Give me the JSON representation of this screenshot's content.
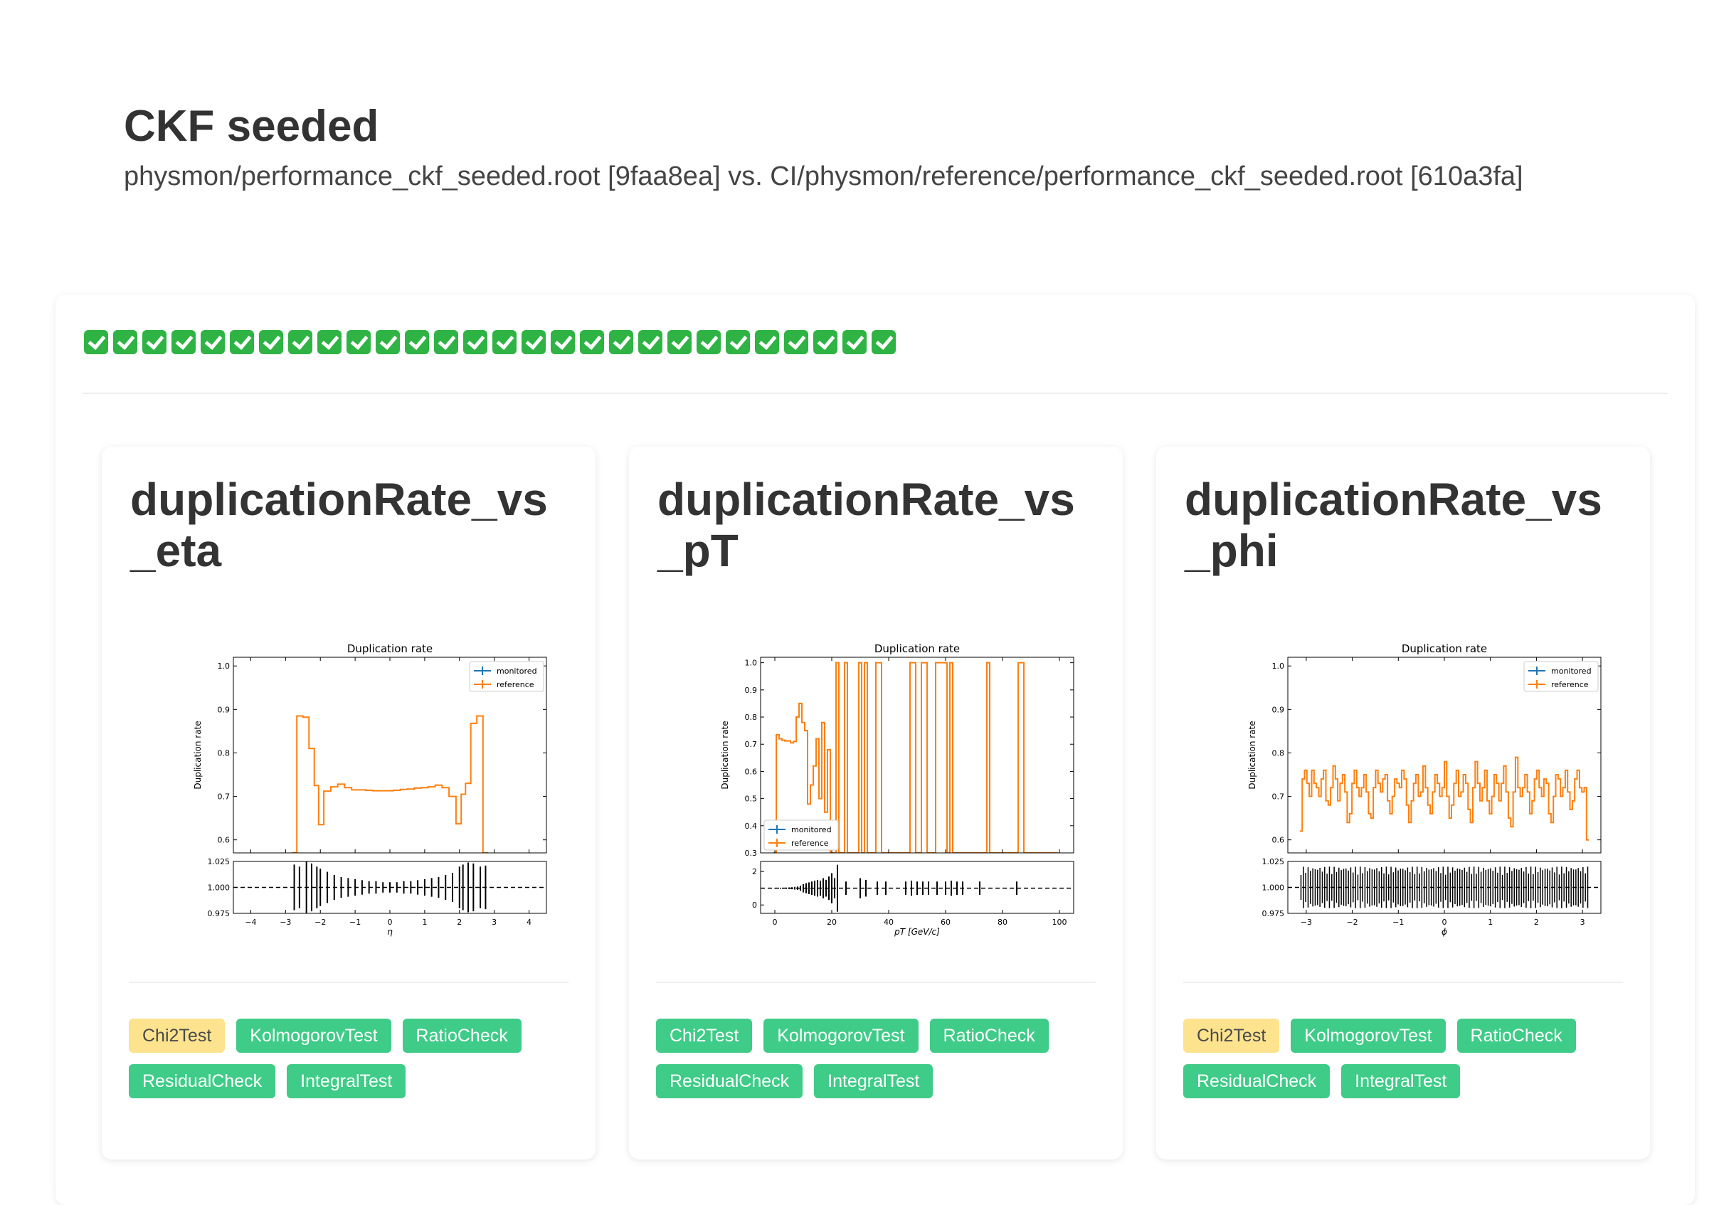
{
  "page": {
    "title": "CKF seeded",
    "subtitle": "physmon/performance_ckf_seeded.root [9faa8ea] vs. CI/physmon/reference/performance_ckf_seeded.root [610a3fa]"
  },
  "status_checks": {
    "count": 28,
    "icon": "check-mark-button-icon",
    "color": "#2fb344"
  },
  "colors": {
    "pass": "#3fcb88",
    "warn": "#fde38e",
    "monitored": "#1f77b4",
    "reference": "#ff7f0e"
  },
  "cards": [
    {
      "title": "duplicationRate_vs_eta",
      "tags": [
        {
          "label": "Chi2Test",
          "status": "warn"
        },
        {
          "label": "KolmogorovTest",
          "status": "pass"
        },
        {
          "label": "RatioCheck",
          "status": "pass"
        },
        {
          "label": "ResidualCheck",
          "status": "pass"
        },
        {
          "label": "IntegralTest",
          "status": "pass"
        }
      ]
    },
    {
      "title": "duplicationRate_vs_pT",
      "tags": [
        {
          "label": "Chi2Test",
          "status": "pass"
        },
        {
          "label": "KolmogorovTest",
          "status": "pass"
        },
        {
          "label": "RatioCheck",
          "status": "pass"
        },
        {
          "label": "ResidualCheck",
          "status": "pass"
        },
        {
          "label": "IntegralTest",
          "status": "pass"
        }
      ]
    },
    {
      "title": "duplicationRate_vs_phi",
      "tags": [
        {
          "label": "Chi2Test",
          "status": "warn"
        },
        {
          "label": "KolmogorovTest",
          "status": "pass"
        },
        {
          "label": "RatioCheck",
          "status": "pass"
        },
        {
          "label": "ResidualCheck",
          "status": "pass"
        },
        {
          "label": "IntegralTest",
          "status": "pass"
        }
      ]
    }
  ],
  "chart_data": [
    {
      "type": "line",
      "title": "Duplication rate",
      "xlabel": "η",
      "ylabel": "Duplication rate",
      "legend": [
        "monitored",
        "reference"
      ],
      "legend_position": "top-right",
      "xlim": [
        -4.5,
        4.5
      ],
      "ylim": [
        0.57,
        1.02
      ],
      "xticks": [
        "−4",
        "−3",
        "−2",
        "−1",
        "0",
        "1",
        "2",
        "3",
        "4"
      ],
      "xtick_values": [
        -4,
        -3,
        -2,
        -1,
        0,
        1,
        2,
        3,
        4
      ],
      "yticks": [
        "0.6",
        "0.7",
        "0.8",
        "0.9",
        "1.0"
      ],
      "ytick_values": [
        0.6,
        0.7,
        0.8,
        0.9,
        1.0
      ],
      "ratio_ylim": [
        0.975,
        1.025
      ],
      "ratio_yticks": [
        "0.975",
        "1.000",
        "1.025"
      ],
      "ratio_ytick_values": [
        0.975,
        1.0,
        1.025
      ],
      "x": [
        -2.75,
        -2.6,
        -2.4,
        -2.25,
        -2.1,
        -2.0,
        -1.8,
        -1.6,
        -1.4,
        -1.2,
        -1.0,
        -0.8,
        -0.6,
        -0.4,
        -0.2,
        0.0,
        0.2,
        0.4,
        0.6,
        0.8,
        1.0,
        1.2,
        1.4,
        1.6,
        1.8,
        2.0,
        2.1,
        2.25,
        2.4,
        2.6,
        2.75
      ],
      "values": [
        0.57,
        0.885,
        0.882,
        0.81,
        0.725,
        0.635,
        0.712,
        0.722,
        0.728,
        0.72,
        0.715,
        0.715,
        0.714,
        0.713,
        0.713,
        0.713,
        0.714,
        0.716,
        0.717,
        0.719,
        0.72,
        0.722,
        0.726,
        0.72,
        0.7,
        0.637,
        0.705,
        0.73,
        0.868,
        0.885,
        0.57
      ],
      "ratio_err": [
        0.022,
        0.02,
        0.025,
        0.023,
        0.02,
        0.018,
        0.015,
        0.012,
        0.01,
        0.009,
        0.008,
        0.007,
        0.006,
        0.006,
        0.005,
        0.005,
        0.005,
        0.006,
        0.006,
        0.007,
        0.008,
        0.009,
        0.01,
        0.012,
        0.014,
        0.02,
        0.022,
        0.024,
        0.023,
        0.02,
        0.021
      ]
    },
    {
      "type": "line",
      "title": "Duplication rate",
      "xlabel": "pT [GeV/c]",
      "ylabel": "Duplication rate",
      "legend": [
        "monitored",
        "reference"
      ],
      "legend_position": "bottom-left",
      "xlim": [
        -5,
        105
      ],
      "ylim": [
        0.3,
        1.02
      ],
      "xticks": [
        "0",
        "20",
        "40",
        "60",
        "80",
        "100"
      ],
      "xtick_values": [
        0,
        20,
        40,
        60,
        80,
        100
      ],
      "yticks": [
        "0.3",
        "0.4",
        "0.5",
        "0.6",
        "0.7",
        "0.8",
        "0.9",
        "1.0"
      ],
      "ytick_values": [
        0.3,
        0.4,
        0.5,
        0.6,
        0.7,
        0.8,
        0.9,
        1.0
      ],
      "ratio_ylim": [
        -0.5,
        2.6
      ],
      "ratio_yticks": [
        "0",
        "2"
      ],
      "ratio_ytick_values": [
        0,
        2
      ],
      "x": [
        0,
        1,
        2,
        3,
        4,
        5,
        6,
        7,
        8,
        9,
        10,
        11,
        12,
        13,
        14,
        15,
        16,
        17,
        18,
        19,
        20,
        21,
        22,
        23,
        24,
        25,
        26,
        27,
        28,
        29,
        30,
        31,
        32,
        33,
        34,
        35,
        36,
        37,
        38,
        39,
        40,
        41,
        42,
        43,
        44,
        45,
        46,
        47,
        48,
        49,
        50,
        51,
        52,
        53,
        54,
        55,
        56,
        57,
        58,
        59,
        60,
        61,
        62,
        63,
        64,
        65,
        66,
        67,
        68,
        69,
        70,
        71,
        72,
        73,
        74,
        75,
        76,
        77,
        78,
        79,
        80,
        81,
        82,
        83,
        84,
        85,
        86,
        87,
        88,
        89,
        90,
        91,
        92,
        93,
        94,
        95,
        96,
        97,
        98,
        99
      ],
      "values": [
        0.3,
        0.735,
        0.72,
        0.715,
        0.712,
        0.712,
        0.705,
        0.71,
        0.8,
        0.85,
        0.78,
        0.75,
        0.48,
        0.55,
        0.62,
        0.72,
        0.5,
        0.78,
        0.45,
        0.68,
        0.3,
        0.3,
        1.0,
        0.3,
        0.3,
        1.0,
        0.3,
        0.3,
        0.3,
        0.3,
        1.0,
        0.3,
        1.0,
        0.3,
        0.3,
        0.3,
        1.0,
        1.0,
        0.3,
        0.3,
        0.3,
        0.3,
        0.3,
        0.3,
        0.3,
        0.3,
        0.3,
        0.3,
        1.0,
        1.0,
        0.3,
        0.3,
        1.0,
        1.0,
        0.3,
        0.3,
        0.3,
        1.0,
        1.0,
        1.0,
        1.0,
        0.3,
        1.0,
        0.3,
        0.3,
        0.3,
        0.3,
        0.3,
        0.3,
        0.3,
        0.3,
        0.3,
        0.3,
        0.3,
        0.3,
        1.0,
        0.3,
        0.3,
        0.3,
        0.3,
        0.3,
        0.3,
        0.3,
        0.3,
        0.3,
        0.3,
        1.0,
        1.0,
        0.3,
        0.3,
        0.3,
        0.3,
        0.3,
        0.3,
        0.3,
        0.3,
        0.3,
        0.3,
        0.3,
        0.3
      ],
      "ratio_err": [
        0.02,
        0.02,
        0.03,
        0.03,
        0.04,
        0.05,
        0.06,
        0.08,
        0.1,
        0.15,
        0.25,
        0.3,
        0.35,
        0.4,
        0.45,
        0.5,
        0.45,
        0.6,
        0.5,
        0.7,
        0.9,
        0.6,
        1.4,
        0,
        0,
        0.4,
        0,
        0,
        0,
        0,
        0.6,
        0,
        0.5,
        0,
        0,
        0,
        0.4,
        0,
        0,
        0.4,
        0,
        0,
        0,
        0,
        0,
        0,
        0.4,
        0,
        0.45,
        0,
        0.4,
        0,
        0.4,
        0,
        0.4,
        0,
        0,
        0.4,
        0,
        0,
        0.4,
        0,
        0.45,
        0,
        0.4,
        0,
        0.4,
        0,
        0,
        0,
        0,
        0,
        0.4,
        0,
        0,
        0,
        0,
        0,
        0,
        0,
        0,
        0,
        0,
        0,
        0,
        0.4,
        0,
        0,
        0,
        0,
        0,
        0,
        0,
        0,
        0,
        0,
        0,
        0,
        0,
        0
      ]
    },
    {
      "type": "line",
      "title": "Duplication rate",
      "xlabel": "ϕ",
      "ylabel": "Duplication rate",
      "legend": [
        "monitored",
        "reference"
      ],
      "legend_position": "top-right",
      "xlim": [
        -3.4,
        3.4
      ],
      "ylim": [
        0.57,
        1.02
      ],
      "xticks": [
        "−3",
        "−2",
        "−1",
        "0",
        "1",
        "2",
        "3"
      ],
      "xtick_values": [
        -3,
        -2,
        -1,
        0,
        1,
        2,
        3
      ],
      "yticks": [
        "0.6",
        "0.7",
        "0.8",
        "0.9",
        "1.0"
      ],
      "ytick_values": [
        0.6,
        0.7,
        0.8,
        0.9,
        1.0
      ],
      "ratio_ylim": [
        0.975,
        1.025
      ],
      "ratio_yticks": [
        "0.975",
        "1.000",
        "1.025"
      ],
      "ratio_ytick_values": [
        0.975,
        1.0,
        1.025
      ],
      "x_range": [
        -3.14,
        3.14
      ],
      "values": [
        0.62,
        0.74,
        0.76,
        0.73,
        0.7,
        0.76,
        0.73,
        0.72,
        0.7,
        0.74,
        0.76,
        0.69,
        0.68,
        0.72,
        0.77,
        0.74,
        0.69,
        0.73,
        0.75,
        0.71,
        0.64,
        0.66,
        0.73,
        0.76,
        0.72,
        0.7,
        0.72,
        0.75,
        0.71,
        0.66,
        0.65,
        0.72,
        0.76,
        0.73,
        0.71,
        0.74,
        0.75,
        0.69,
        0.66,
        0.7,
        0.74,
        0.73,
        0.72,
        0.76,
        0.74,
        0.68,
        0.64,
        0.69,
        0.73,
        0.75,
        0.7,
        0.71,
        0.77,
        0.72,
        0.68,
        0.66,
        0.71,
        0.75,
        0.73,
        0.7,
        0.72,
        0.78,
        0.7,
        0.65,
        0.68,
        0.73,
        0.76,
        0.7,
        0.71,
        0.75,
        0.73,
        0.67,
        0.64,
        0.72,
        0.78,
        0.73,
        0.69,
        0.72,
        0.76,
        0.69,
        0.66,
        0.7,
        0.75,
        0.73,
        0.69,
        0.73,
        0.77,
        0.71,
        0.65,
        0.63,
        0.71,
        0.79,
        0.72,
        0.7,
        0.72,
        0.75,
        0.71,
        0.66,
        0.69,
        0.74,
        0.76,
        0.72,
        0.7,
        0.74,
        0.73,
        0.66,
        0.64,
        0.7,
        0.75,
        0.74,
        0.7,
        0.72,
        0.76,
        0.71,
        0.67,
        0.69,
        0.74,
        0.76,
        0.72,
        0.71,
        0.72,
        0.6
      ]
    }
  ]
}
